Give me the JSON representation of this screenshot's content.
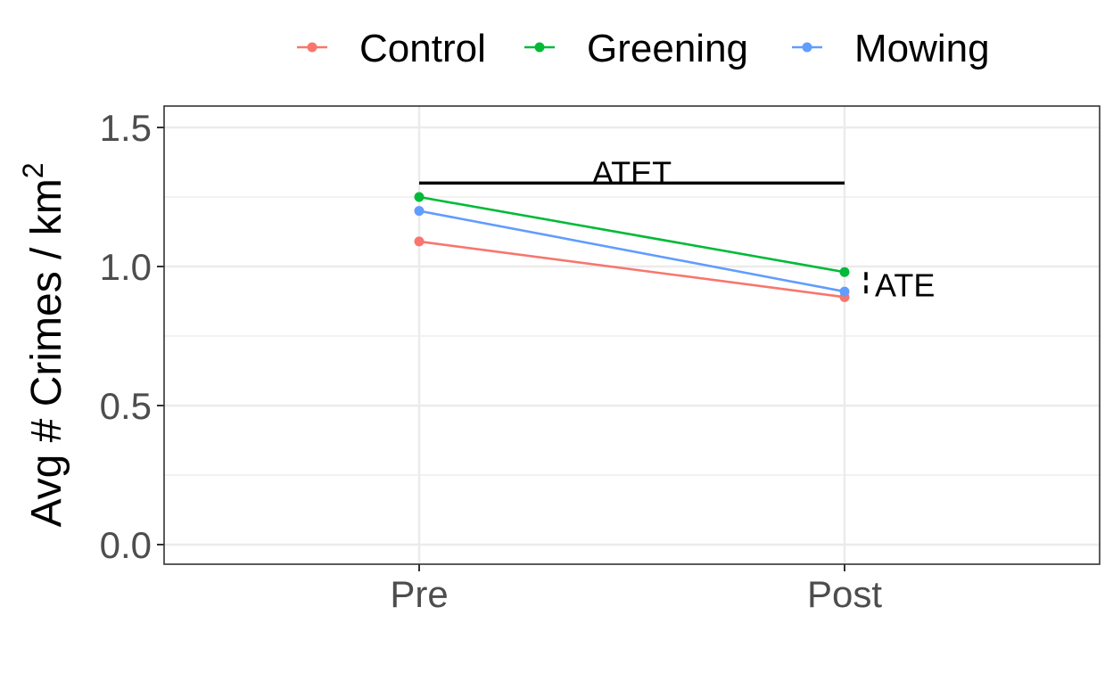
{
  "chart_data": {
    "type": "line",
    "title": "",
    "xlabel": "",
    "ylabel": "Avg # Crimes / km",
    "ylabel_superscript": "2",
    "categories": [
      "Pre",
      "Post"
    ],
    "ylim": [
      0.0,
      1.5
    ],
    "yticks": [
      0.0,
      0.5,
      1.0,
      1.5
    ],
    "ytick_labels": [
      "0.0",
      "0.5",
      "1.0",
      "1.5"
    ],
    "grid": true,
    "legend_position": "top",
    "series": [
      {
        "name": "Control",
        "color": "#F8766D",
        "values": [
          1.09,
          0.89
        ]
      },
      {
        "name": "Greening",
        "color": "#00BA38",
        "values": [
          1.25,
          0.98
        ]
      },
      {
        "name": "Mowing",
        "color": "#619CFF",
        "values": [
          1.2,
          0.91
        ]
      }
    ],
    "annotations": [
      {
        "label": "ATET",
        "type": "horizontal-bar",
        "y": 1.3,
        "x_from": "Pre",
        "x_to": "Post"
      },
      {
        "label": "ATE",
        "type": "dashed-vertical-bar",
        "x": "Post",
        "y_from": 0.89,
        "y_to": 0.98
      }
    ]
  }
}
